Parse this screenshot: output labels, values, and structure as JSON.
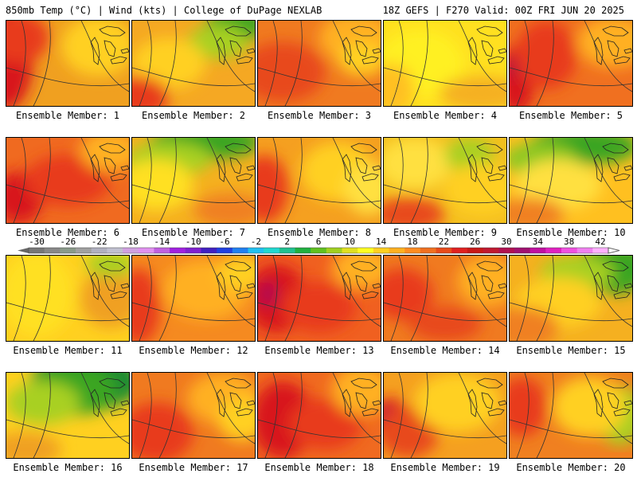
{
  "header": {
    "left": "850mb Temp (°C) | Wind (kts) | College of DuPage NEXLAB",
    "right": "18Z GEFS | F270 Valid: 00Z FRI JUN 20 2025"
  },
  "panels": [
    {
      "label": "Ensemble Member: 1",
      "base": "#f0a020",
      "blobs": [
        [
          "#d8181a",
          0.0,
          0.45,
          0.22,
          0.6
        ],
        [
          "#e83a1a",
          0.1,
          0.2,
          0.25,
          0.3
        ],
        [
          "#ffd020",
          0.75,
          0.3,
          0.3,
          0.35
        ]
      ]
    },
    {
      "label": "Ensemble Member: 2",
      "base": "#f5a823",
      "blobs": [
        [
          "#3aa520",
          0.85,
          0.05,
          0.25,
          0.2
        ],
        [
          "#a8d020",
          0.7,
          0.25,
          0.25,
          0.2
        ],
        [
          "#ffd020",
          0.3,
          0.5,
          0.3,
          0.3
        ],
        [
          "#e83a1a",
          0.05,
          0.9,
          0.25,
          0.25
        ]
      ]
    },
    {
      "label": "Ensemble Member: 3",
      "base": "#f07a20",
      "blobs": [
        [
          "#e84a1a",
          0.2,
          0.6,
          0.35,
          0.35
        ],
        [
          "#ffb020",
          0.8,
          0.2,
          0.3,
          0.3
        ],
        [
          "#ffd020",
          0.85,
          0.45,
          0.2,
          0.2
        ]
      ]
    },
    {
      "label": "Ensemble Member: 4",
      "base": "#ffe020",
      "blobs": [
        [
          "#fff020",
          0.3,
          0.5,
          0.35,
          0.4
        ],
        [
          "#f5b020",
          0.8,
          0.85,
          0.35,
          0.2
        ],
        [
          "#ffc020",
          0.05,
          0.8,
          0.2,
          0.3
        ]
      ]
    },
    {
      "label": "Ensemble Member: 5",
      "base": "#f07020",
      "blobs": [
        [
          "#d8181a",
          0.05,
          0.7,
          0.15,
          0.4
        ],
        [
          "#b01040",
          0.02,
          0.55,
          0.05,
          0.12
        ],
        [
          "#e83a1a",
          0.3,
          0.4,
          0.25,
          0.4
        ],
        [
          "#ffb020",
          0.85,
          0.25,
          0.3,
          0.3
        ]
      ]
    },
    {
      "label": "Ensemble Member: 6",
      "base": "#f06a20",
      "blobs": [
        [
          "#d8181a",
          0.1,
          0.7,
          0.2,
          0.3
        ],
        [
          "#e83a1a",
          0.5,
          0.5,
          0.35,
          0.3
        ],
        [
          "#ffb020",
          0.85,
          0.15,
          0.25,
          0.25
        ]
      ]
    },
    {
      "label": "Ensemble Member: 7",
      "base": "#f5b020",
      "blobs": [
        [
          "#3aa520",
          0.6,
          0.05,
          0.45,
          0.2
        ],
        [
          "#a8d020",
          0.3,
          0.25,
          0.35,
          0.2
        ],
        [
          "#ffe020",
          0.2,
          0.55,
          0.3,
          0.3
        ],
        [
          "#f08020",
          0.8,
          0.85,
          0.3,
          0.2
        ]
      ]
    },
    {
      "label": "Ensemble Member: 8",
      "base": "#f5a020",
      "blobs": [
        [
          "#e83a1a",
          0.05,
          0.6,
          0.2,
          0.4
        ],
        [
          "#ffd020",
          0.65,
          0.4,
          0.3,
          0.35
        ],
        [
          "#ffe040",
          0.9,
          0.6,
          0.2,
          0.3
        ]
      ]
    },
    {
      "label": "Ensemble Member: 9",
      "base": "#f5c020",
      "blobs": [
        [
          "#ffe040",
          0.25,
          0.3,
          0.3,
          0.3
        ],
        [
          "#a8d020",
          0.7,
          0.2,
          0.2,
          0.2
        ],
        [
          "#e84a1a",
          0.2,
          0.9,
          0.3,
          0.2
        ],
        [
          "#ffd020",
          0.8,
          0.6,
          0.3,
          0.3
        ]
      ]
    },
    {
      "label": "Ensemble Member: 10",
      "base": "#ffc020",
      "blobs": [
        [
          "#3aa520",
          0.6,
          0.1,
          0.45,
          0.22
        ],
        [
          "#8cc820",
          0.25,
          0.25,
          0.3,
          0.2
        ],
        [
          "#ffe040",
          0.4,
          0.55,
          0.35,
          0.3
        ],
        [
          "#f08020",
          0.15,
          0.9,
          0.3,
          0.2
        ]
      ]
    },
    {
      "label": "Ensemble Member: 11",
      "base": "#ffd020",
      "blobs": [
        [
          "#ffe020",
          0.25,
          0.45,
          0.3,
          0.5
        ],
        [
          "#f0a020",
          0.85,
          0.5,
          0.25,
          0.35
        ],
        [
          "#a8d020",
          0.85,
          0.1,
          0.2,
          0.15
        ]
      ]
    },
    {
      "label": "Ensemble Member: 12",
      "base": "#f58a20",
      "blobs": [
        [
          "#e83a1a",
          0.05,
          0.6,
          0.18,
          0.45
        ],
        [
          "#ffb020",
          0.6,
          0.4,
          0.35,
          0.35
        ],
        [
          "#ffd020",
          0.9,
          0.2,
          0.2,
          0.2
        ]
      ]
    },
    {
      "label": "Ensemble Member: 13",
      "base": "#f06020",
      "blobs": [
        [
          "#d8181a",
          0.15,
          0.5,
          0.25,
          0.4
        ],
        [
          "#b01050",
          0.08,
          0.45,
          0.08,
          0.15
        ],
        [
          "#e83a1a",
          0.5,
          0.6,
          0.3,
          0.3
        ],
        [
          "#ffb020",
          0.85,
          0.15,
          0.25,
          0.25
        ]
      ]
    },
    {
      "label": "Ensemble Member: 14",
      "base": "#f07a20",
      "blobs": [
        [
          "#e83a1a",
          0.15,
          0.45,
          0.25,
          0.3
        ],
        [
          "#ffb020",
          0.85,
          0.3,
          0.25,
          0.3
        ],
        [
          "#e84a1a",
          0.5,
          0.8,
          0.3,
          0.2
        ]
      ]
    },
    {
      "label": "Ensemble Member: 15",
      "base": "#f5b020",
      "blobs": [
        [
          "#3aa520",
          0.85,
          0.15,
          0.3,
          0.3
        ],
        [
          "#a8d020",
          0.55,
          0.2,
          0.3,
          0.2
        ],
        [
          "#ffd020",
          0.4,
          0.55,
          0.35,
          0.3
        ],
        [
          "#f08020",
          0.1,
          0.85,
          0.3,
          0.25
        ]
      ]
    },
    {
      "label": "Ensemble Member: 16",
      "base": "#ffd020",
      "blobs": [
        [
          "#1e8a30",
          0.65,
          0.1,
          0.45,
          0.35
        ],
        [
          "#3aa520",
          0.55,
          0.2,
          0.35,
          0.3
        ],
        [
          "#a8d020",
          0.3,
          0.35,
          0.3,
          0.25
        ],
        [
          "#f0a020",
          0.15,
          0.9,
          0.3,
          0.2
        ]
      ]
    },
    {
      "label": "Ensemble Member: 17",
      "base": "#f07a20",
      "blobs": [
        [
          "#e83a1a",
          0.2,
          0.7,
          0.3,
          0.35
        ],
        [
          "#ffb020",
          0.75,
          0.3,
          0.3,
          0.3
        ],
        [
          "#ffd020",
          0.9,
          0.55,
          0.2,
          0.25
        ]
      ]
    },
    {
      "label": "Ensemble Member: 18",
      "base": "#f06a20",
      "blobs": [
        [
          "#d8181a",
          0.2,
          0.55,
          0.25,
          0.45
        ],
        [
          "#e83a1a",
          0.55,
          0.6,
          0.3,
          0.3
        ],
        [
          "#ffb020",
          0.85,
          0.2,
          0.25,
          0.3
        ]
      ]
    },
    {
      "label": "Ensemble Member: 19",
      "base": "#f5a020",
      "blobs": [
        [
          "#d8181a",
          0.05,
          0.55,
          0.15,
          0.25
        ],
        [
          "#b01050",
          0.02,
          0.5,
          0.05,
          0.1
        ],
        [
          "#e84a1a",
          0.2,
          0.7,
          0.25,
          0.3
        ],
        [
          "#ffd020",
          0.6,
          0.35,
          0.35,
          0.35
        ]
      ]
    },
    {
      "label": "Ensemble Member: 20",
      "base": "#f08020",
      "blobs": [
        [
          "#e83a1a",
          0.1,
          0.4,
          0.2,
          0.35
        ],
        [
          "#a8d020",
          0.9,
          0.5,
          0.2,
          0.35
        ],
        [
          "#ffd020",
          0.65,
          0.4,
          0.3,
          0.35
        ]
      ]
    }
  ],
  "colorbar": {
    "labels": [
      "-30",
      "-26",
      "-22",
      "-18",
      "-14",
      "-10",
      "-6",
      "-2",
      "2",
      "6",
      "10",
      "14",
      "18",
      "22",
      "26",
      "30",
      "34",
      "38",
      "42"
    ],
    "colors": [
      "#777777",
      "#888888",
      "#8a9a8a",
      "#a0a0a0",
      "#b0b0c0",
      "#c0c0d0",
      "#d0a0e0",
      "#e090f0",
      "#c060e0",
      "#a020e0",
      "#8020d0",
      "#4020c0",
      "#2040e0",
      "#2080f0",
      "#20c0f0",
      "#20d8d0",
      "#20c090",
      "#20b040",
      "#60c020",
      "#a0d020",
      "#e0e020",
      "#ffff20",
      "#ffd020",
      "#ffb020",
      "#ff8c20",
      "#f07020",
      "#e84a1a",
      "#e02020",
      "#c81818",
      "#c01830",
      "#b01050",
      "#a01070",
      "#c010a0",
      "#e020c0",
      "#f050e0",
      "#f080f0",
      "#ffb0ff"
    ]
  }
}
